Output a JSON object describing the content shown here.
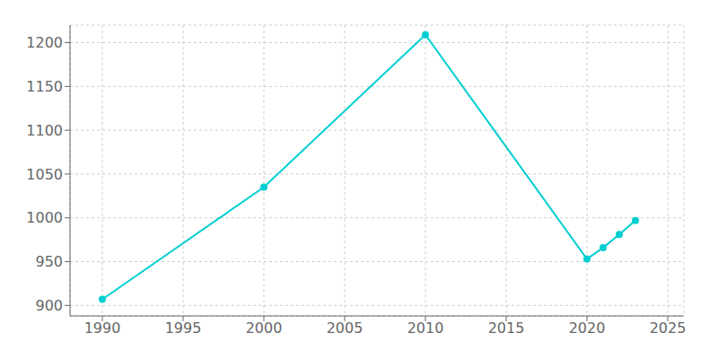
{
  "chart_data": {
    "type": "line",
    "x": [
      1990,
      2000,
      2010,
      2020,
      2021,
      2022,
      2023
    ],
    "values": [
      907,
      1035,
      1209,
      953,
      966,
      981,
      997
    ],
    "color": "#00CED1",
    "marker": "circle",
    "xlim": [
      1988,
      2026
    ],
    "ylim": [
      888,
      1220
    ],
    "xticks": [
      1990,
      1995,
      2000,
      2005,
      2010,
      2015,
      2020,
      2025
    ],
    "yticks": [
      900,
      950,
      1000,
      1050,
      1100,
      1150,
      1200
    ],
    "grid": true
  }
}
